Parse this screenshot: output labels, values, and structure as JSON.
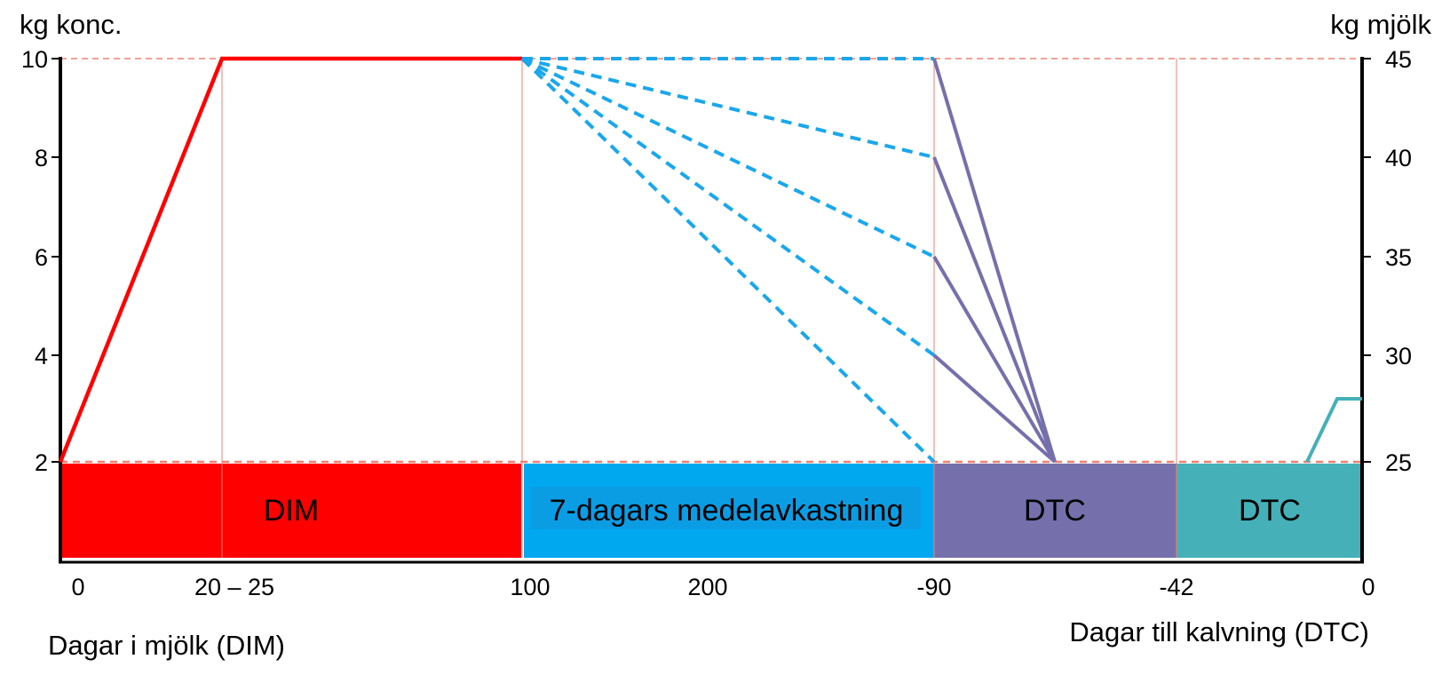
{
  "chart_data": {
    "type": "line",
    "left_axis": {
      "title": "kg konc.",
      "ticks": [
        "10",
        "8",
        "6",
        "4",
        "2"
      ]
    },
    "right_axis": {
      "title": "kg mjölk",
      "ticks": [
        "45",
        "40",
        "35",
        "30",
        "25"
      ]
    },
    "x_ticks": [
      "0",
      "20 – 25",
      "100",
      "200",
      "-90",
      "-42",
      "0"
    ],
    "xlabel_left": "Dagar i mjölk (DIM)",
    "xlabel_right": "Dagar till kalvning (DTC)",
    "phases": [
      {
        "label": "DIM",
        "color": "#ff0000"
      },
      {
        "label": "7-dagars medelavkastning",
        "color": "#00a8f0"
      },
      {
        "label": "DTC",
        "color": "#7570ac"
      },
      {
        "label": "DTC",
        "color": "#45b0b8"
      }
    ],
    "colors": {
      "ramp_up": "#ff0000",
      "taper_dashed": "#1aa7ec",
      "dry_off": "#7570ac",
      "close_up": "#45b0b8",
      "reference_lines": "#f08070"
    },
    "series": [
      {
        "points": [
          [
            "0",
            2
          ],
          [
            "20 – 25",
            10
          ],
          [
            "100",
            10
          ]
        ]
      },
      {
        "points": [
          [
            "100",
            10
          ],
          [
            "-90",
            10
          ]
        ]
      },
      {
        "points": [
          [
            "100",
            10
          ],
          [
            "-90",
            8
          ]
        ]
      },
      {
        "points": [
          [
            "100",
            10
          ],
          [
            "-90",
            6
          ]
        ]
      },
      {
        "points": [
          [
            "100",
            10
          ],
          [
            "-90",
            4
          ]
        ]
      },
      {
        "points": [
          [
            "100",
            10
          ],
          [
            "-90",
            2
          ]
        ]
      },
      {
        "points": [
          [
            "-90",
            10
          ],
          [
            "dry_off_end",
            2
          ]
        ]
      },
      {
        "points": [
          [
            "-90",
            8
          ],
          [
            "dry_off_end",
            2
          ]
        ]
      },
      {
        "points": [
          [
            "-90",
            6
          ],
          [
            "dry_off_end",
            2
          ]
        ]
      },
      {
        "points": [
          [
            "-90",
            4
          ],
          [
            "dry_off_end",
            2
          ]
        ]
      },
      {
        "points": [
          [
            "close_up_start",
            2
          ],
          [
            "close_up_mid",
            3.5
          ],
          [
            "0",
            3.5
          ]
        ]
      }
    ]
  }
}
